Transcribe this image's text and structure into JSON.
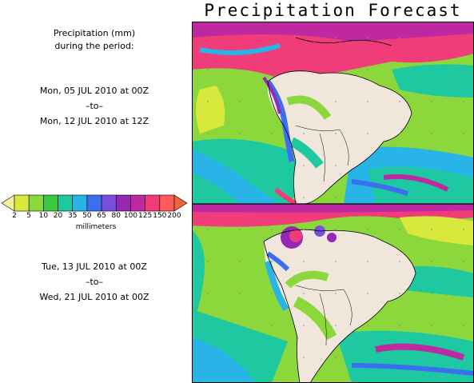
{
  "title": "Precipitation Forecast",
  "period1": {
    "header1": "Precipitation (mm)",
    "header2": "during the period:",
    "start": "Mon, 05 JUL 2010 at 00Z",
    "sep": "–to–",
    "end": "Mon, 12 JUL 2010 at 12Z"
  },
  "period2": {
    "start": "Tue, 13 JUL 2010 at 00Z",
    "sep": "–to–",
    "end": "Wed, 21 JUL 2010 at 00Z"
  },
  "legend": {
    "ticks": [
      "2",
      "5",
      "10",
      "20",
      "35",
      "50",
      "65",
      "80",
      "100",
      "125",
      "150",
      "200"
    ],
    "colors": [
      "#f5f0a0",
      "#d8e83c",
      "#8cd83c",
      "#3cc83c",
      "#1ec8a0",
      "#28b4e6",
      "#3c6ef0",
      "#7850dc",
      "#9628b4",
      "#be28a0",
      "#f03c78",
      "#ff5a5a",
      "#f0643c"
    ],
    "units": "millimeters"
  },
  "colors": {
    "land": "#f0e6dc",
    "ocean_light": "#8cd83c",
    "ocean_mid": "#1ec8a0",
    "heavy": "#f03c78",
    "border": "#000000"
  }
}
